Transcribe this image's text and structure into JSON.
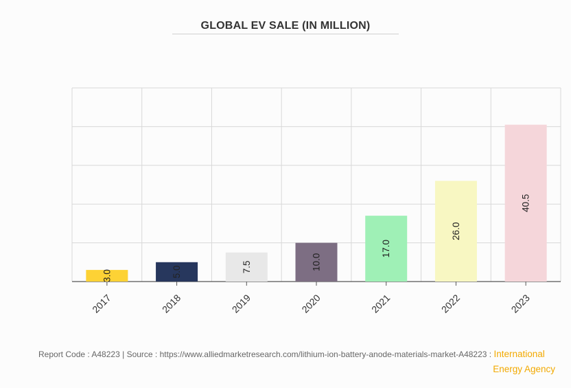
{
  "chart_data": {
    "type": "bar",
    "title": "GLOBAL EV SALE (IN MILLION)",
    "categories": [
      "2017",
      "2018",
      "2019",
      "2020",
      "2021",
      "2022",
      "2023"
    ],
    "values": [
      3.0,
      5.0,
      7.5,
      10.0,
      17.0,
      26.0,
      40.5
    ],
    "value_labels": [
      "3.0",
      "5.0",
      "7.5",
      "10.0",
      "17.0",
      "26.0",
      "40.5"
    ],
    "colors": [
      "#fdd235",
      "#27375d",
      "#e8e8e8",
      "#7d6e83",
      "#9ff0b6",
      "#f8f7c2",
      "#f5d6da"
    ],
    "xlabel": "",
    "ylabel": "",
    "ylim": [
      0,
      50
    ],
    "grid": true
  },
  "footer": {
    "report_code": "Report Code : A48223",
    "separator": "|",
    "source_prefix": "Source : https://www.alliedmarketresearch.com/lithium-ion-battery-anode-materials-market-A48223 :",
    "source_org_line1": "International",
    "source_org_line2": "Energy Agency"
  }
}
